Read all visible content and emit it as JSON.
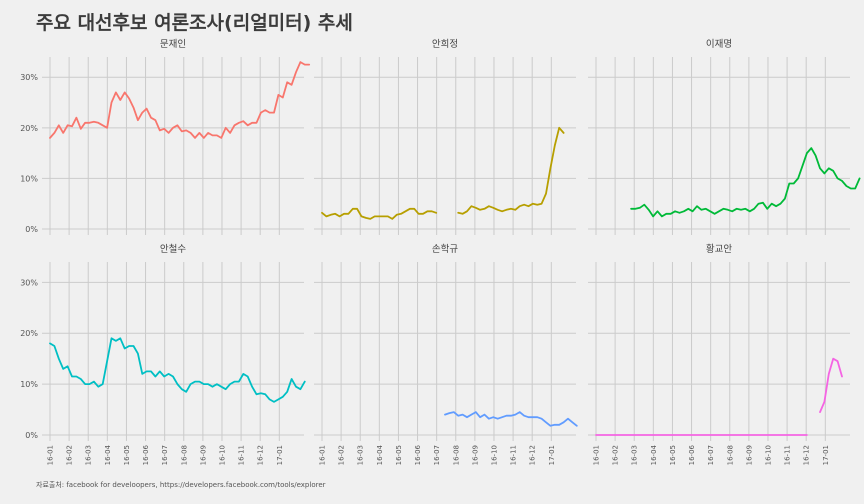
{
  "title": "주요 대선후보 여론조사(리얼미터) 추세",
  "caption": "자료출처: facebook for develoopers, https://developers.facebook.com/tools/explorer",
  "chart_data": {
    "type": "line",
    "facet_layout": "2 rows x 3 columns",
    "ylim": [
      0,
      34
    ],
    "y_ticks": [
      0,
      10,
      20,
      30
    ],
    "y_tick_labels": [
      "0%",
      "10%",
      "20%",
      "30%"
    ],
    "x_tick_labels": [
      "16-01",
      "16-02",
      "16-03",
      "16-04",
      "16-05",
      "16-06",
      "16-07",
      "16-08",
      "16-09",
      "16-10",
      "16-11",
      "16-12",
      "17-01"
    ],
    "x_range_weeks": [
      0,
      56
    ],
    "grid": true,
    "panels": [
      {
        "name": "문재인",
        "color": "#F8766D",
        "segments": [
          [
            18.0,
            19.0,
            20.5,
            19.0,
            20.5,
            20.3,
            22.0,
            19.8,
            21.0,
            21.0,
            21.2,
            21.0,
            20.5,
            20.0,
            25.0,
            27.0,
            25.5,
            27.0,
            25.8,
            24.0,
            21.5,
            23.0,
            23.8,
            22.0,
            21.5,
            19.5,
            19.8,
            19.0,
            20.0,
            20.5,
            19.3,
            19.5,
            19.0,
            18.0,
            19.0,
            18.0,
            19.0,
            18.5,
            18.5,
            18.0,
            20.0,
            19.0,
            20.5,
            21.0,
            21.3,
            20.5,
            21.0,
            21.0,
            23.0,
            23.5,
            23.0,
            23.0,
            26.5,
            26.0,
            29.0,
            28.5,
            31.0,
            33.0,
            32.5,
            32.5
          ]
        ]
      },
      {
        "name": "안희정",
        "color": "#B79F00",
        "segments": [
          [
            3.2,
            2.5,
            2.8,
            3.0,
            2.5,
            3.0,
            3.0,
            4.0,
            4.0,
            2.5,
            2.2,
            2.0,
            2.5,
            2.5,
            2.5,
            2.5,
            2.0,
            2.8,
            3.0,
            3.5,
            4.0,
            4.0,
            3.0,
            3.0,
            3.5,
            3.5,
            3.2
          ],
          [
            3.2,
            3.0,
            3.5,
            4.5,
            4.2,
            3.8,
            4.0,
            4.5,
            4.2,
            3.8,
            3.5,
            3.8,
            4.0,
            3.8,
            4.5,
            4.8,
            4.5,
            5.0,
            4.8,
            5.0,
            7.0,
            12.0,
            16.5,
            20.0,
            19.0
          ]
        ],
        "segment_starts": [
          0,
          31
        ]
      },
      {
        "name": "이재명",
        "color": "#00BA38",
        "segments": [
          [
            4.0,
            4.0,
            4.2,
            4.8,
            3.8,
            2.5,
            3.5,
            2.5,
            3.0,
            3.0,
            3.5,
            3.2,
            3.5,
            4.0,
            3.5,
            4.5,
            3.8,
            4.0,
            3.5,
            3.0,
            3.5,
            4.0,
            3.8,
            3.5,
            4.0,
            3.8,
            4.0,
            3.5,
            4.0,
            5.0,
            5.2,
            4.0,
            5.0,
            4.5,
            5.0,
            6.0,
            9.0,
            9.0,
            10.0,
            12.5,
            15.0,
            16.0,
            14.5,
            12.0,
            11.0,
            12.0,
            11.5,
            10.0,
            9.5,
            8.5,
            8.0,
            8.0,
            10.0
          ]
        ],
        "segment_starts": [
          8
        ]
      },
      {
        "name": "안철수",
        "color": "#00BFC4",
        "segments": [
          [
            18.0,
            17.5,
            15.0,
            13.0,
            13.5,
            11.5,
            11.5,
            11.0,
            10.0,
            10.0,
            10.5,
            9.5,
            10.0,
            14.5,
            19.0,
            18.5,
            19.0,
            17.0,
            17.5,
            17.5,
            16.0,
            12.0,
            12.5,
            12.5,
            11.5,
            12.5,
            11.5,
            12.0,
            11.5,
            10.0,
            9.0,
            8.5,
            10.0,
            10.5,
            10.5,
            10.0,
            10.0,
            9.5,
            10.0,
            9.5,
            9.0,
            10.0,
            10.5,
            10.5,
            12.0,
            11.5,
            9.5,
            8.0,
            8.2,
            8.0,
            7.0,
            6.5,
            7.0,
            7.5,
            8.5,
            11.0,
            9.5,
            9.0,
            10.5
          ]
        ]
      },
      {
        "name": "손학규",
        "color": "#619CFF",
        "segments": [
          [
            4.0,
            4.3,
            4.5,
            3.8,
            4.0,
            3.5,
            4.0,
            4.5,
            3.5,
            4.0,
            3.2,
            3.5,
            3.2,
            3.5,
            3.8,
            3.8,
            4.0,
            4.5,
            3.8,
            3.5,
            3.5,
            3.5,
            3.2,
            2.5,
            1.8,
            2.0,
            2.0,
            2.5,
            3.2,
            2.5,
            1.8
          ]
        ],
        "segment_starts": [
          28
        ]
      },
      {
        "name": "황교안",
        "color": "#F564E3",
        "segments": [
          [
            0,
            0,
            0,
            0,
            0,
            0,
            0,
            0,
            0,
            0,
            0,
            0,
            0,
            0,
            0,
            0,
            0,
            0,
            0,
            0,
            0,
            0,
            0,
            0,
            0,
            0,
            0,
            0,
            0,
            0,
            0,
            0,
            0,
            0,
            0,
            0,
            0,
            0,
            0,
            0,
            0,
            0,
            0,
            0,
            0,
            0,
            0,
            0,
            0
          ],
          [
            4.5,
            6.5,
            12.0,
            15.0,
            14.5,
            11.5
          ]
        ],
        "segment_starts": [
          0,
          51
        ]
      }
    ]
  }
}
